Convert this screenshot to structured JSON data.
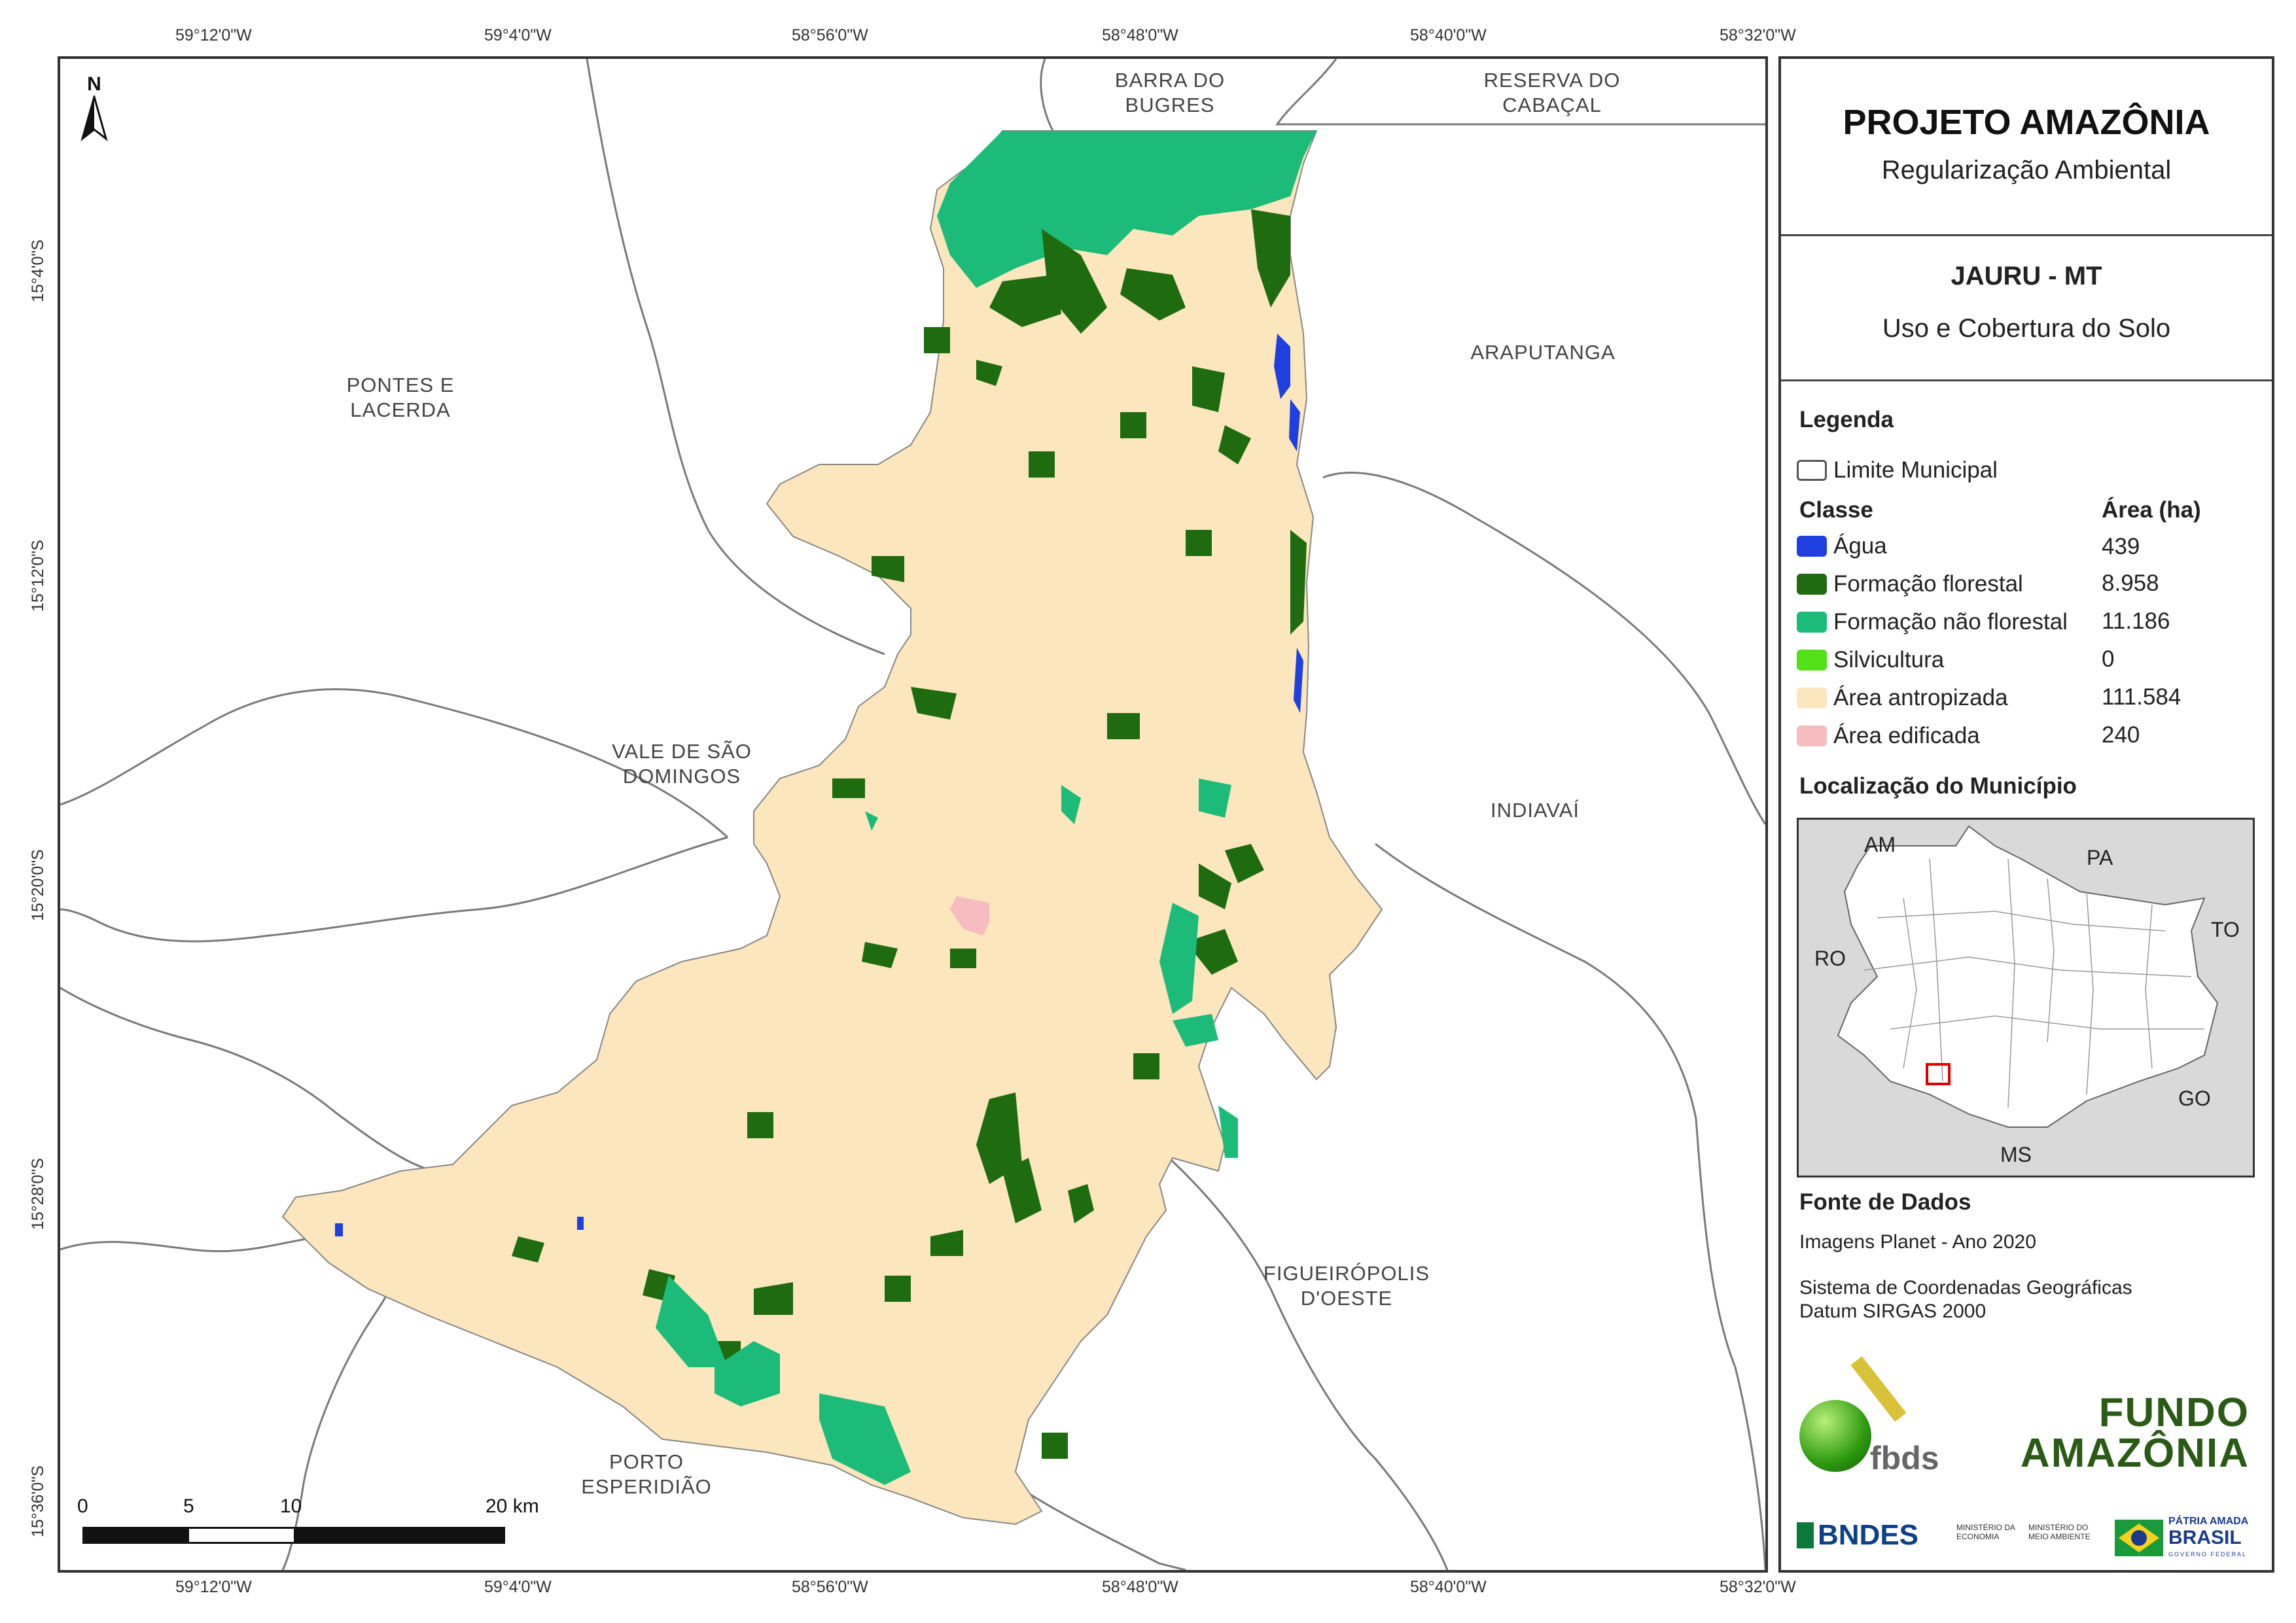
{
  "coords": {
    "top": [
      "59°12'0\"W",
      "59°4'0\"W",
      "58°56'0\"W",
      "58°48'0\"W",
      "58°40'0\"W",
      "58°32'0\"W"
    ],
    "bottom": [
      "59°12'0\"W",
      "59°4'0\"W",
      "58°56'0\"W",
      "58°48'0\"W",
      "58°40'0\"W",
      "58°32'0\"W"
    ],
    "left": [
      "15°4'0\"S",
      "15°12'0\"S",
      "15°20'0\"S",
      "15°28'0\"S",
      "15°36'0\"S"
    ]
  },
  "map": {
    "north": "N",
    "municipalities": [
      {
        "name": "BARRA DO\nBUGRES"
      },
      {
        "name": "RESERVA DO\nCABAÇAL"
      },
      {
        "name": "ARAPUTANGA"
      },
      {
        "name": "PONTES E\nLACERDA"
      },
      {
        "name": "VALE DE SÃO\nDOMINGOS"
      },
      {
        "name": "INDIAVAÍ"
      },
      {
        "name": "FIGUEIRÓPOLIS\nD'OESTE"
      },
      {
        "name": "PORTO\nESPERIDIÃO"
      }
    ],
    "scale": [
      "0",
      "5",
      "10",
      "20 km"
    ]
  },
  "panel": {
    "project_title": "PROJETO AMAZÔNIA",
    "project_subtitle": "Regularização Ambiental",
    "municipality": "JAURU - MT",
    "theme": "Uso e Cobertura do Solo",
    "legend_title": "Legenda",
    "limit_label": "Limite Municipal",
    "class_header": "Classe",
    "area_header": "Área (ha)",
    "classes": [
      {
        "label": "Água",
        "value": "439",
        "color": "#1f3fe0"
      },
      {
        "label": "Formação florestal",
        "value": "8.958",
        "color": "#1e6b10"
      },
      {
        "label": "Formação não florestal",
        "value": "11.186",
        "color": "#1dbb7a"
      },
      {
        "label": "Silvicultura",
        "value": "0",
        "color": "#54e016"
      },
      {
        "label": "Área antropizada",
        "value": "111.584",
        "color": "#fbe6bd"
      },
      {
        "label": "Área edificada",
        "value": "240",
        "color": "#f7bcc0"
      }
    ],
    "location_title": "Localização do Município",
    "inset_states": [
      "AM",
      "PA",
      "RO",
      "TO",
      "GO",
      "MS"
    ],
    "source_title": "Fonte de Dados",
    "source_lines": [
      "Imagens Planet - Ano 2020",
      "Sistema de Coordenadas Geográficas",
      "Datum SIRGAS 2000"
    ],
    "logos": [
      "fbds",
      "FUNDO",
      "AMAZÔNIA",
      "BNDES",
      "MINISTÉRIO DA ECONOMIA",
      "MINISTÉRIO DO MEIO AMBIENTE",
      "PÁTRIA AMADA",
      "BRASIL",
      "GOVERNO FEDERAL"
    ]
  }
}
